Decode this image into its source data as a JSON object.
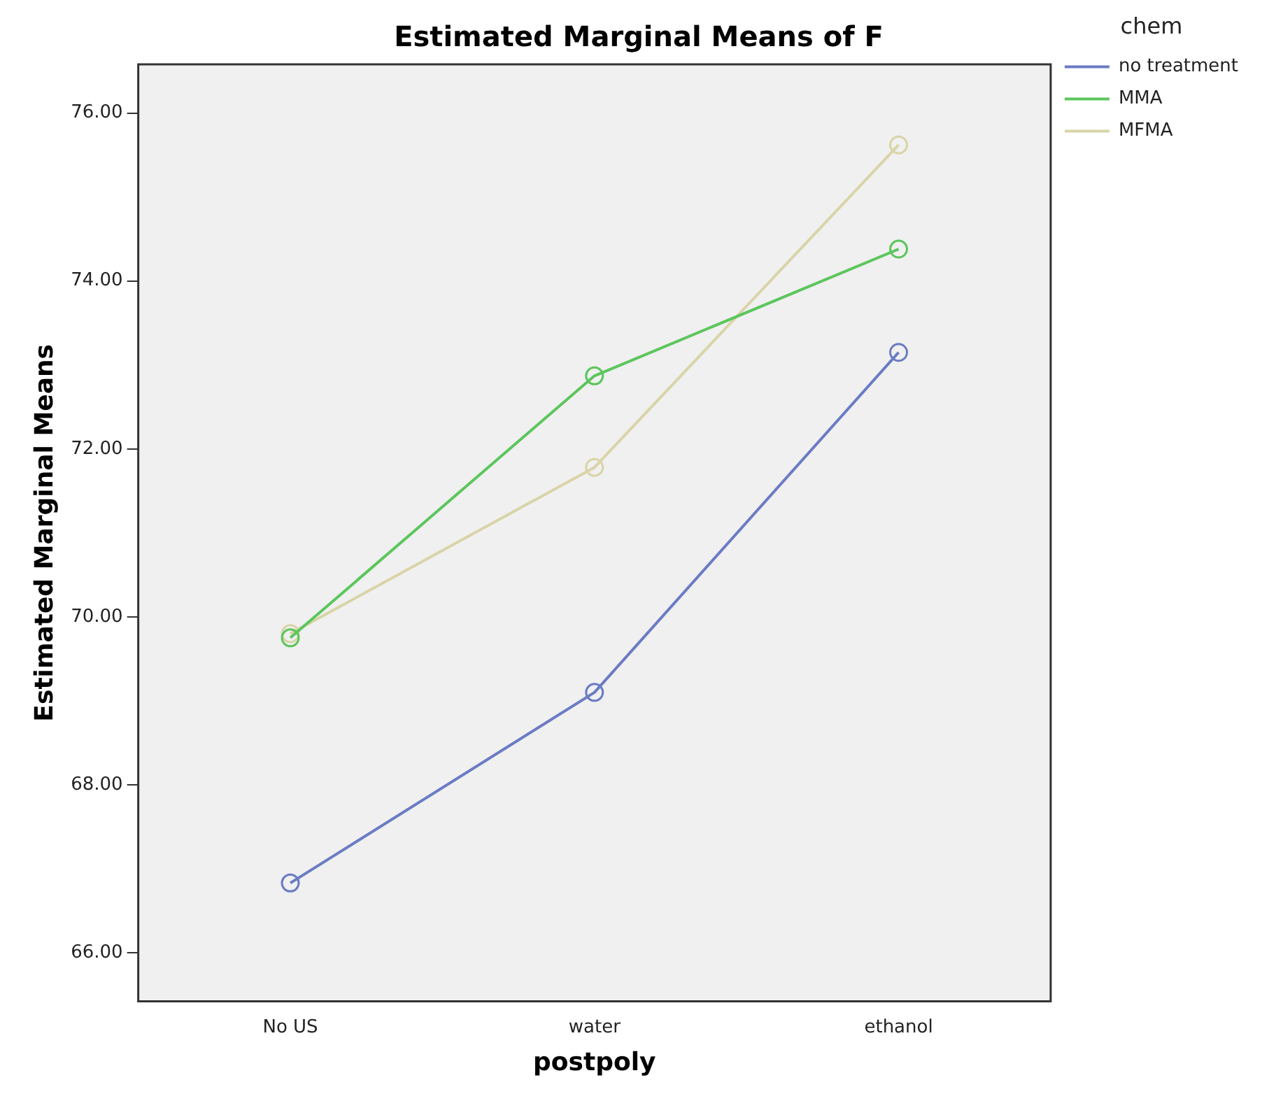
{
  "chart_data": {
    "type": "line",
    "title": "Estimated Marginal Means of F",
    "xlabel": "postpoly",
    "ylabel": "Estimated Marginal Means",
    "legend_title": "chem",
    "categories": [
      "No US",
      "water",
      "ethanol"
    ],
    "series": [
      {
        "name": "no treatment",
        "color": "#6b7cc4",
        "values": [
          66.83,
          69.1,
          73.15
        ]
      },
      {
        "name": "MMA",
        "color": "#5cc65c",
        "values": [
          69.75,
          72.87,
          74.38
        ]
      },
      {
        "name": "MFMA",
        "color": "#d9d4a8",
        "values": [
          69.8,
          71.78,
          75.62
        ]
      }
    ],
    "ylim": [
      65.42,
      76.58
    ],
    "yticks": [
      {
        "value": 66,
        "label": "66.00"
      },
      {
        "value": 68,
        "label": "68.00"
      },
      {
        "value": 70,
        "label": "70.00"
      },
      {
        "value": 72,
        "label": "72.00"
      },
      {
        "value": 74,
        "label": "74.00"
      },
      {
        "value": 76,
        "label": "76.00"
      }
    ],
    "grid": false,
    "legend": "top right",
    "marker": "circle",
    "line_style": "solid"
  }
}
